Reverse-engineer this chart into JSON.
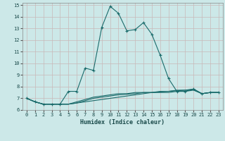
{
  "xlabel": "Humidex (Indice chaleur)",
  "xlim": [
    -0.5,
    23.5
  ],
  "ylim": [
    6,
    15.2
  ],
  "yticks": [
    6,
    7,
    8,
    9,
    10,
    11,
    12,
    13,
    14,
    15
  ],
  "xticks": [
    0,
    1,
    2,
    3,
    4,
    5,
    6,
    7,
    8,
    9,
    10,
    11,
    12,
    13,
    14,
    15,
    16,
    17,
    18,
    19,
    20,
    21,
    22,
    23
  ],
  "bg_color": "#cce8e8",
  "grid_color": "#b8d8d8",
  "line_color": "#1a6b6b",
  "line1_x": [
    0,
    1,
    2,
    3,
    4,
    5,
    6,
    7,
    8,
    9,
    10,
    11,
    12,
    13,
    14,
    15,
    16,
    17,
    18,
    19,
    20,
    21,
    22,
    23
  ],
  "line1_y": [
    7.0,
    6.7,
    6.5,
    6.5,
    6.5,
    7.6,
    7.6,
    9.6,
    9.4,
    13.1,
    14.9,
    14.3,
    12.8,
    12.9,
    13.5,
    12.5,
    10.7,
    8.7,
    7.6,
    7.6,
    7.8,
    7.4,
    7.5,
    7.5
  ],
  "line2_x": [
    0,
    1,
    2,
    3,
    4,
    5,
    6,
    7,
    8,
    9,
    10,
    11,
    12,
    13,
    14,
    15,
    16,
    17,
    18,
    19,
    20,
    21,
    22,
    23
  ],
  "line2_y": [
    7.0,
    6.7,
    6.5,
    6.5,
    6.5,
    6.5,
    6.6,
    6.7,
    6.8,
    6.9,
    7.0,
    7.1,
    7.2,
    7.3,
    7.4,
    7.5,
    7.5,
    7.5,
    7.6,
    7.6,
    7.7,
    7.4,
    7.5,
    7.5
  ],
  "line3_x": [
    0,
    1,
    2,
    3,
    4,
    5,
    6,
    7,
    8,
    9,
    10,
    11,
    12,
    13,
    14,
    15,
    16,
    17,
    18,
    19,
    20,
    21,
    22,
    23
  ],
  "line3_y": [
    7.0,
    6.7,
    6.5,
    6.5,
    6.5,
    6.5,
    6.6,
    6.8,
    7.0,
    7.1,
    7.2,
    7.3,
    7.35,
    7.4,
    7.5,
    7.5,
    7.55,
    7.6,
    7.65,
    7.7,
    7.75,
    7.4,
    7.5,
    7.5
  ],
  "line4_x": [
    0,
    1,
    2,
    3,
    4,
    5,
    6,
    7,
    8,
    9,
    10,
    11,
    12,
    13,
    14,
    15,
    16,
    17,
    18,
    19,
    20,
    21,
    22,
    23
  ],
  "line4_y": [
    7.0,
    6.7,
    6.5,
    6.5,
    6.5,
    6.5,
    6.7,
    6.9,
    7.1,
    7.2,
    7.3,
    7.4,
    7.4,
    7.5,
    7.5,
    7.5,
    7.6,
    7.6,
    7.7,
    7.7,
    7.8,
    7.4,
    7.5,
    7.5
  ]
}
